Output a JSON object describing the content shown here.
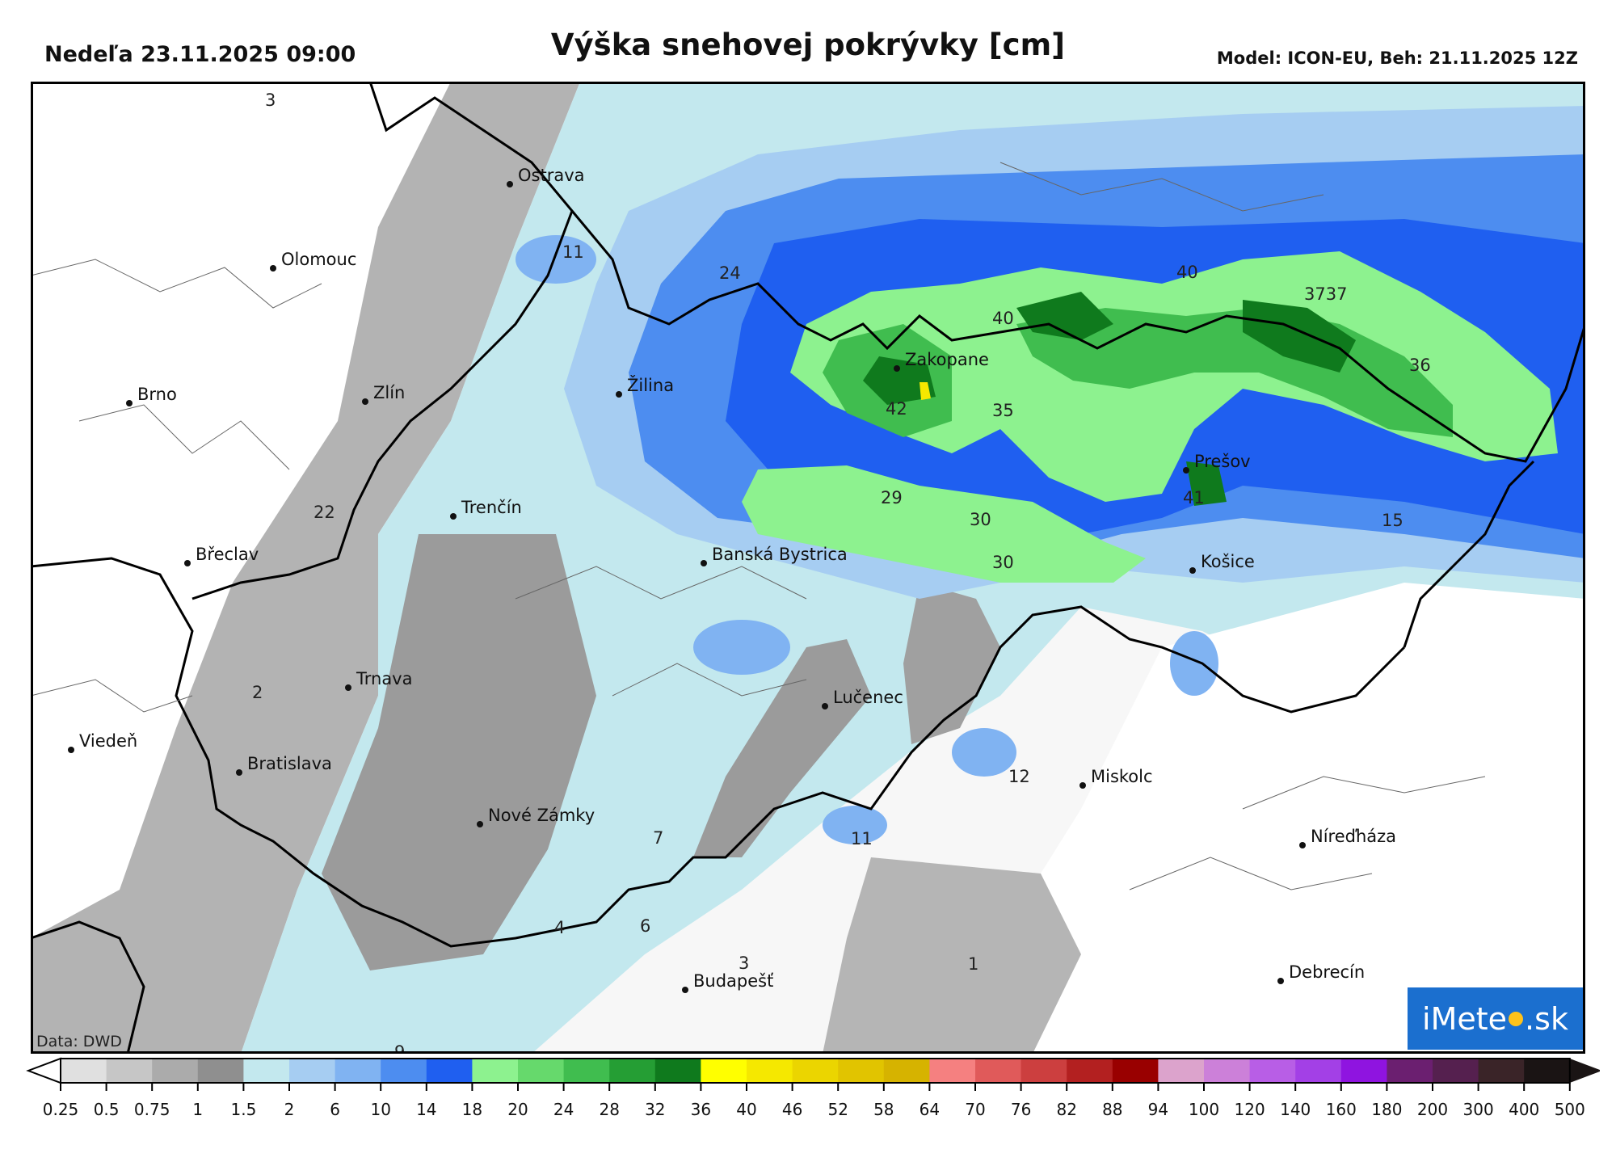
{
  "header": {
    "date": "Nedeľa 23.11.2025 09:00",
    "title": "Výška snehovej pokrývky [cm]",
    "model": "Model: ICON-EU, Beh: 21.11.2025 12Z"
  },
  "credit": "Data: DWD",
  "logo": {
    "prefix": "iMete",
    "suffix": "sk",
    "color": "#1b6fcf"
  },
  "cities": [
    {
      "name": "Ostrava"
    },
    {
      "name": "Olomouc"
    },
    {
      "name": "Brno"
    },
    {
      "name": "Zlín"
    },
    {
      "name": "Žilina"
    },
    {
      "name": "Zakopane"
    },
    {
      "name": "Trenčín"
    },
    {
      "name": "Břeclav"
    },
    {
      "name": "Banská Bystrica"
    },
    {
      "name": "Prešov"
    },
    {
      "name": "Košice"
    },
    {
      "name": "Trnava"
    },
    {
      "name": "Lučenec"
    },
    {
      "name": "Viedeň"
    },
    {
      "name": "Bratislava"
    },
    {
      "name": "Miskolc"
    },
    {
      "name": "Nové Zámky"
    },
    {
      "name": "Níreďháza"
    },
    {
      "name": "Budapešť"
    },
    {
      "name": "Debrecín"
    }
  ],
  "values": [
    "3",
    "11",
    "24",
    "40",
    "40",
    "3737",
    "36",
    "35",
    "42",
    "29",
    "30",
    "30",
    "41",
    "15",
    "22",
    "2",
    "12",
    "11",
    "7",
    "4",
    "6",
    "3",
    "1",
    "9"
  ],
  "legend": {
    "colors": [
      "#ffffff",
      "#e0e0e0",
      "#c6c6c6",
      "#ababab",
      "#8f8f8f",
      "#c3e8ee",
      "#a6cdf2",
      "#80b3f2",
      "#4d8df0",
      "#1f5ff0",
      "#8df28f",
      "#66d96c",
      "#40bd4f",
      "#259e34",
      "#0f7a1d",
      "#ffff00",
      "#f5e800",
      "#ebd500",
      "#e1c400",
      "#d6b300",
      "#f58080",
      "#e05a5a",
      "#cc3f3f",
      "#b32020",
      "#990000",
      "#dca3cc",
      "#cc80d9",
      "#b85ee6",
      "#a340e6",
      "#8f14e0",
      "#6b1f70",
      "#55204f",
      "#3a2428",
      "#1a1414"
    ],
    "ticks": [
      "0.25",
      "0.5",
      "0.75",
      "1",
      "1.5",
      "2",
      "6",
      "10",
      "14",
      "18",
      "20",
      "24",
      "28",
      "32",
      "36",
      "40",
      "46",
      "52",
      "58",
      "64",
      "70",
      "76",
      "82",
      "88",
      "94",
      "100",
      "120",
      "140",
      "160",
      "180",
      "200",
      "300",
      "400",
      "500"
    ]
  }
}
